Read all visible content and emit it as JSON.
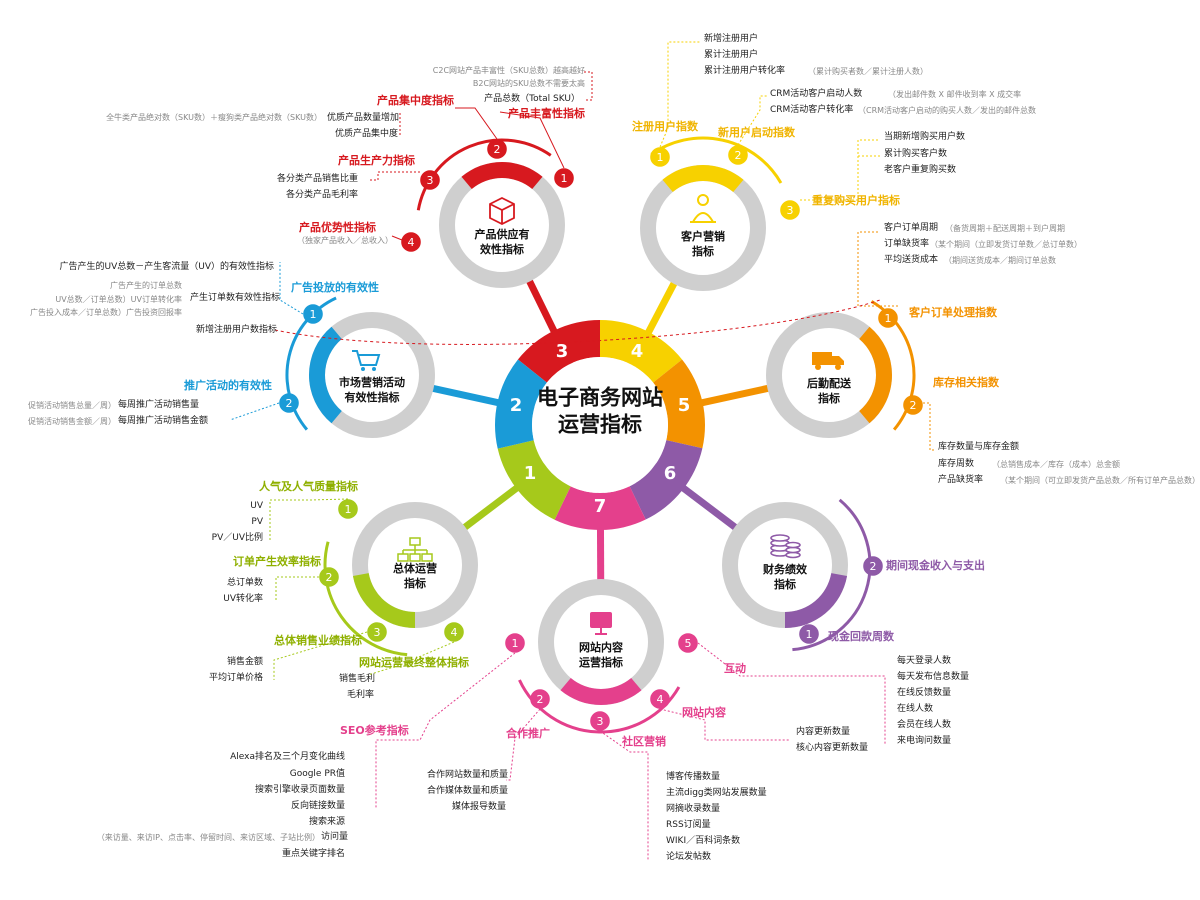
{
  "colors": {
    "red": "#d7191f",
    "yellow": "#f7d100",
    "orange": "#f39200",
    "purple": "#8e5aa7",
    "pink": "#e4408c",
    "green": "#a6c91b",
    "blue": "#1a9bd7",
    "grey": "#cfcfcf"
  },
  "center": {
    "line1": "电子商务网站",
    "line2": "运营指标"
  },
  "segments": [
    "1",
    "2",
    "3",
    "4",
    "5",
    "6",
    "7"
  ],
  "hubs": {
    "supply": {
      "line1": "产品供应有",
      "line2": "效性指标",
      "icon": "cube-icon"
    },
    "customer": {
      "line1": "客户营销",
      "line2": "指标",
      "icon": "person-icon"
    },
    "logistics": {
      "line1": "后勤配送",
      "line2": "指标",
      "icon": "truck-icon"
    },
    "finance": {
      "line1": "财务绩效",
      "line2": "指标",
      "icon": "coins-icon"
    },
    "content": {
      "line1": "网站内容",
      "line2": "运营指标",
      "icon": "monitor-icon"
    },
    "operations": {
      "line1": "总体运营",
      "line2": "指标",
      "icon": "org-chart-icon"
    },
    "marketing": {
      "line1": "市场营销活动",
      "line2": "有效性指标",
      "icon": "cart-icon"
    }
  },
  "supply": {
    "cat1": "产品丰富性指标",
    "cat1_items": [
      "C2C网站产品丰富性（SKU总数）越高越好",
      "B2C网站的SKU总数不需要太高",
      "产品总数（Total SKU）"
    ],
    "cat2": "产品集中度指标",
    "cat2_note": "全牛类产品绝对数（SKU数）＋瘦狗类产品绝对数（SKU数）",
    "cat2_items": [
      "优质产品数量增加",
      "优质产品集中度"
    ],
    "cat3": "产品生产力指标",
    "cat3_items": [
      "各分类产品销售比重",
      "各分类产品毛利率"
    ],
    "cat4": "产品优势性指标",
    "cat4_note": "（独家产品收入／总收入）"
  },
  "customer": {
    "cat1": "注册用户指数",
    "cat1_items": [
      "新增注册用户",
      "累计注册用户",
      "累计注册用户转化率"
    ],
    "cat1_note": "（累计购买者数／累计注册人数）",
    "cat2": "新用户启动指数",
    "cat2_items": [
      "CRM活动客户启动人数",
      "CRM活动客户转化率"
    ],
    "cat2_notes": [
      "（发出邮件数 X 邮件收到率 X 成交率",
      "（CRM活动客户启动的购买人数／发出的邮件总数"
    ],
    "cat3": "重复购买用户指标",
    "cat3_items": [
      "当期新增购买用户数",
      "累计购买客户数",
      "老客户重复购买数"
    ]
  },
  "logistics": {
    "cat1": "客户订单处理指数",
    "cat1_items": [
      "客户订单周期",
      "订单缺货率",
      "平均送货成本"
    ],
    "cat1_notes": [
      "（备货周期＋配送周期＋到户周期",
      "（某个期间（立即发货订单数／总订单数）",
      "（期间送货成本／期间订单总数"
    ],
    "cat2": "库存相关指数",
    "cat2_items": [
      "库存数量与库存金额",
      "库存周数",
      "产品缺货率"
    ],
    "cat2_notes": [
      "（总销售成本／库存（成本）总金额",
      "（某个期间（可立即发货产品总数／所有订单产品总数）"
    ]
  },
  "finance": {
    "cat1": "现金回款周数",
    "cat2": "期间现金收入与支出"
  },
  "content": {
    "cat1": "SEO参考指标",
    "cat1_items": [
      "Alexa排名及三个月变化曲线",
      "Google PR值",
      "搜索引擎收录页面数量",
      "反向链接数量",
      "搜索来源",
      "访问量",
      "重点关键字排名"
    ],
    "cat1_note": "（来访量、来访IP、点击率、停留时间、来访区域、子站比例）",
    "cat2": "合作推广",
    "cat2_items": [
      "合作网站数量和质量",
      "合作媒体数量和质量",
      "媒体报导数量"
    ],
    "cat3": "社区营销",
    "cat3_items": [
      "博客传播数量",
      "主流digg类网站发展数量",
      "网摘收录数量",
      "RSS订阅量",
      "WIKI／百科词条数",
      "论坛发帖数"
    ],
    "cat4": "网站内容",
    "cat4_items": [
      "内容更新数量",
      "核心内容更新数量"
    ],
    "cat5": "互动",
    "cat5_items": [
      "每天登录人数",
      "每天发布信息数量",
      "在线反馈数量",
      "在线人数",
      "会员在线人数",
      "来电询问数量"
    ]
  },
  "operations": {
    "cat1": "人气及人气质量指标",
    "cat1_items": [
      "UV",
      "PV",
      "PV／UV比例"
    ],
    "cat2": "订单产生效率指标",
    "cat2_items": [
      "总订单数",
      "UV转化率"
    ],
    "cat3": "总体销售业绩指标",
    "cat3_items": [
      "销售金额",
      "平均订单价格"
    ],
    "cat4": "网站运营最终整体指标",
    "cat4_items": [
      "销售毛利",
      "毛利率"
    ]
  },
  "marketing": {
    "cat1": "广告投放的有效性",
    "cat1_items": [
      "广告产生的UV总数－产生客流量（UV）的有效性指标",
      "产生订单数有效性指标",
      "新增注册用户数指标"
    ],
    "cat1_notes": [
      "广告产生的订单总数",
      "UV总数／订单总数）UV订单转化率",
      "广告投入成本／订单总数）广告投资回报率"
    ],
    "cat2": "推广活动的有效性",
    "cat2_items": [
      "每周推广活动销售量",
      "每周推广活动销售金额"
    ],
    "cat2_notes": [
      "促销活动销售总量／周）",
      "促销活动销售金额／周）"
    ]
  }
}
